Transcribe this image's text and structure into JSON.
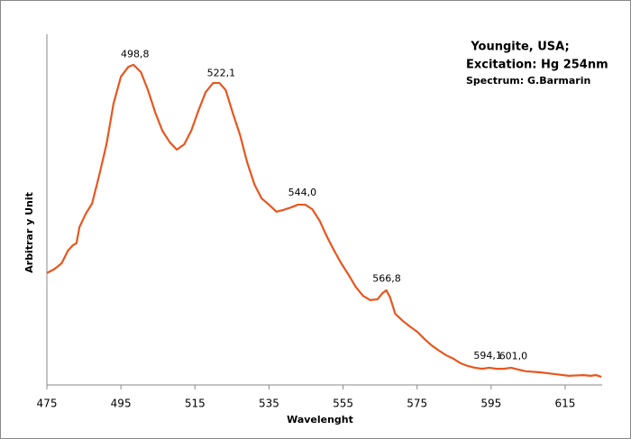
{
  "chart_data": {
    "type": "line",
    "title": [
      "Youngite, USA;",
      "Excitation: Hg 254nm"
    ],
    "subtitle": "Spectrum: G.Barmarin",
    "x_label": "Wavelenght",
    "y_label": "Arbitrar y Unit",
    "x": [
      475,
      477,
      479,
      480.7,
      482,
      483,
      483.8,
      485.5,
      487.2,
      489.1,
      491.1,
      493,
      495,
      497,
      498.4,
      500.4,
      502.3,
      504.3,
      506.2,
      508.2,
      510.1,
      512.1,
      514,
      516,
      517.9,
      519.9,
      521.6,
      523.3,
      525.2,
      527.2,
      529.1,
      531.1,
      533,
      535,
      537,
      538.9,
      540.9,
      542.8,
      544.8,
      546.7,
      548.7,
      550.6,
      552.6,
      554.5,
      556.5,
      558.4,
      560.4,
      562.3,
      564.3,
      565.7,
      566.7,
      567.7,
      569.1,
      571.1,
      573,
      575,
      577,
      578.9,
      580.9,
      582.8,
      584.8,
      586.7,
      588.7,
      590.6,
      592.6,
      594.5,
      596.5,
      598.4,
      600.4,
      602.3,
      604.3,
      608.2,
      612.1,
      616,
      619.9,
      621.8,
      623.3,
      624.8
    ],
    "series": [
      {
        "name": "Spectrum",
        "color": "#e8561f",
        "values": [
          31.9,
          33,
          34.7,
          38.3,
          39.8,
          40.4,
          45,
          48.8,
          51.7,
          59.6,
          68.6,
          80.2,
          87.9,
          90.7,
          91.3,
          89.2,
          84.1,
          77.6,
          72.5,
          69.2,
          67.1,
          68.6,
          72.5,
          78.4,
          83.5,
          86.1,
          86.1,
          84.1,
          77.6,
          71.2,
          63.5,
          57.1,
          53.2,
          51.4,
          49.4,
          49.9,
          50.6,
          51.4,
          51.4,
          50.1,
          46.8,
          42.4,
          38.3,
          34.7,
          31.4,
          28,
          25.4,
          24.2,
          24.4,
          26.2,
          27,
          25,
          20.3,
          18.3,
          16.7,
          15.2,
          13.1,
          11.3,
          9.8,
          8.5,
          7.5,
          6.2,
          5.4,
          4.9,
          4.6,
          4.9,
          4.6,
          4.6,
          4.9,
          4.4,
          3.9,
          3.6,
          3.1,
          2.6,
          2.8,
          2.6,
          2.8,
          2.3
        ]
      }
    ],
    "annotations": [
      {
        "x": 498.8,
        "label": "498,8"
      },
      {
        "x": 522.1,
        "label": "522,1"
      },
      {
        "x": 544,
        "label": "544,0"
      },
      {
        "x": 566.8,
        "label": "566,8"
      },
      {
        "x": 594.1,
        "label": "594,1"
      },
      {
        "x": 601,
        "label": "601,0"
      }
    ],
    "xlim": [
      475,
      625
    ],
    "ylim": [
      0,
      100
    ],
    "xticks": [
      475,
      495,
      515,
      535,
      555,
      575,
      595,
      615
    ]
  }
}
